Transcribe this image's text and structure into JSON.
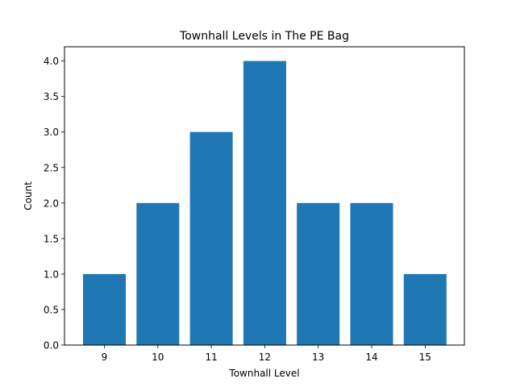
{
  "chart_data": {
    "type": "bar",
    "title": "Townhall Levels in The PE Bag",
    "xlabel": "Townhall Level",
    "ylabel": "Count",
    "categories": [
      "9",
      "10",
      "11",
      "12",
      "13",
      "14",
      "15"
    ],
    "values": [
      1,
      2,
      3,
      4,
      2,
      2,
      1
    ],
    "yticks": [
      "0.0",
      "0.5",
      "1.0",
      "1.5",
      "2.0",
      "2.5",
      "3.0",
      "3.5",
      "4.0"
    ],
    "ylim": [
      0,
      4.2
    ],
    "grid": false,
    "bar_color": "#1f77b4"
  }
}
